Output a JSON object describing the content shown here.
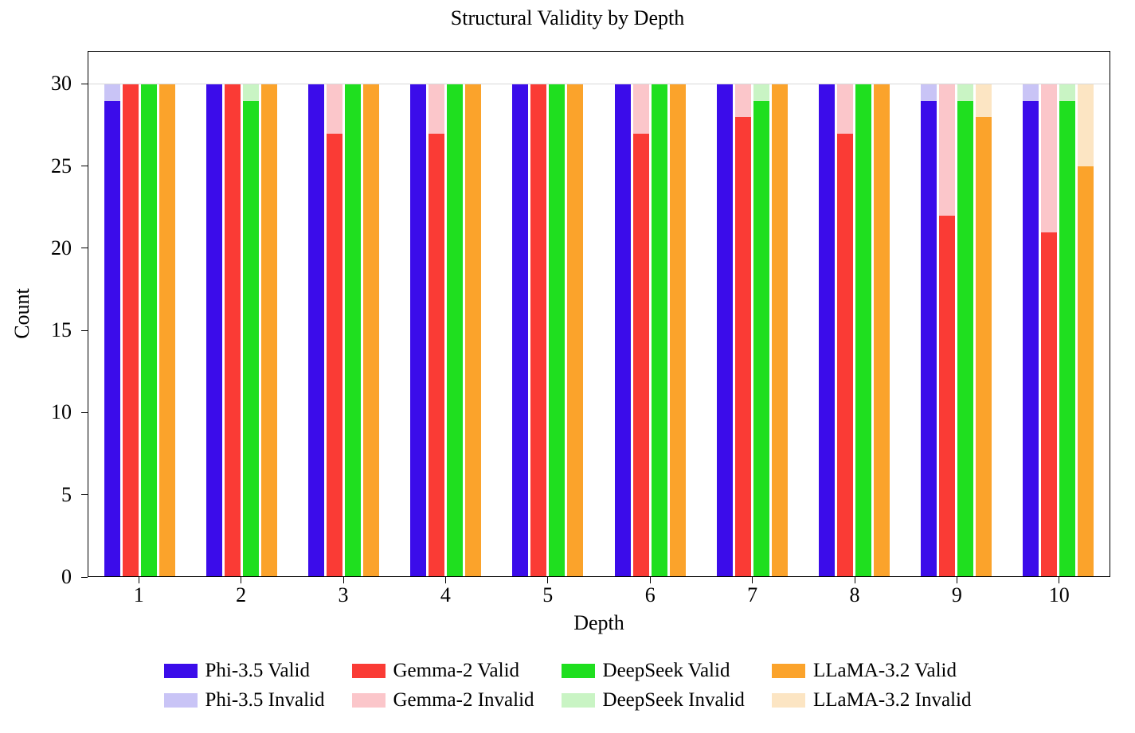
{
  "chart_data": {
    "type": "bar",
    "stacked": true,
    "title": "Structural Validity by Depth",
    "xlabel": "Depth",
    "ylabel": "Count",
    "categories": [
      "1",
      "2",
      "3",
      "4",
      "5",
      "6",
      "7",
      "8",
      "9",
      "10"
    ],
    "ylim": [
      0,
      32
    ],
    "yticks": [
      0,
      5,
      10,
      15,
      20,
      25,
      30
    ],
    "stack_total": 30,
    "grid": "horizontal line at y=30",
    "legend_position": "below, two rows (valid row, invalid row)",
    "series": [
      {
        "name": "Phi-3.5 Valid",
        "color": "#3b0cea",
        "values": [
          29,
          30,
          30,
          30,
          30,
          30,
          30,
          30,
          29,
          29
        ]
      },
      {
        "name": "Phi-3.5 Invalid",
        "color": "#c9c4f6",
        "values": [
          1,
          0,
          0,
          0,
          0,
          0,
          0,
          0,
          1,
          1
        ]
      },
      {
        "name": "Gemma-2 Valid",
        "color": "#fa3b35",
        "values": [
          30,
          30,
          27,
          27,
          30,
          27,
          28,
          27,
          22,
          21
        ]
      },
      {
        "name": "Gemma-2 Invalid",
        "color": "#fbc6ca",
        "values": [
          0,
          0,
          3,
          3,
          0,
          3,
          2,
          3,
          8,
          9
        ]
      },
      {
        "name": "DeepSeek Valid",
        "color": "#1fdf1f",
        "values": [
          30,
          29,
          30,
          30,
          30,
          30,
          29,
          30,
          29,
          29
        ]
      },
      {
        "name": "DeepSeek Invalid",
        "color": "#c9f4c4",
        "values": [
          0,
          1,
          0,
          0,
          0,
          0,
          1,
          0,
          1,
          1
        ]
      },
      {
        "name": "LLaMA-3.2 Valid",
        "color": "#fba32b",
        "values": [
          30,
          30,
          30,
          30,
          30,
          30,
          30,
          30,
          28,
          25
        ]
      },
      {
        "name": "LLaMA-3.2 Invalid",
        "color": "#fce5c3",
        "values": [
          0,
          0,
          0,
          0,
          0,
          0,
          0,
          0,
          2,
          5
        ]
      }
    ]
  }
}
